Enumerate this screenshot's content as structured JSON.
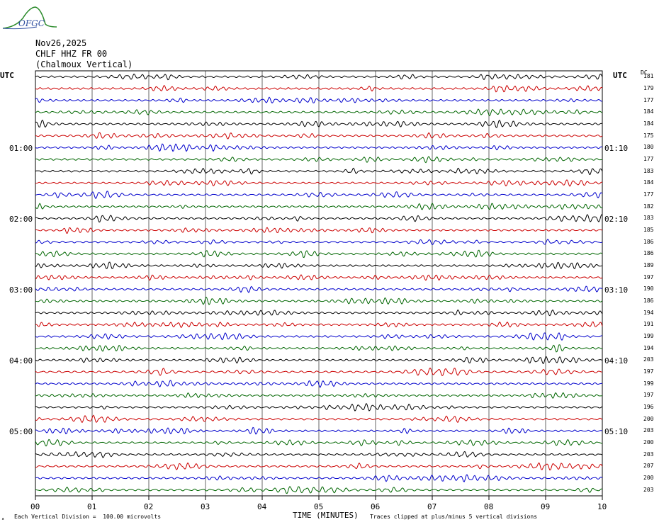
{
  "logo_text": "OFGC",
  "header": {
    "date": "Nov26,2025",
    "station": "CHLF HHZ FR 00",
    "name": "(Chalmoux Vertical)"
  },
  "utc_left": "UTC",
  "utc_right": "UTC",
  "dc_label": "DC",
  "left_times": [
    "01:00",
    "02:00",
    "03:00",
    "04:00",
    "05:00"
  ],
  "right_times": [
    "01:10",
    "02:10",
    "03:10",
    "04:10",
    "05:10"
  ],
  "dc_values": [
    "181",
    "179",
    "177",
    "184",
    "184",
    "175",
    "180",
    "177",
    "183",
    "184",
    "177",
    "182",
    "183",
    "185",
    "186",
    "186",
    "189",
    "197",
    "190",
    "186",
    "194",
    "191",
    "199",
    "194",
    "203",
    "197",
    "199",
    "197",
    "196",
    "200",
    "203",
    "200",
    "203",
    "207",
    "200",
    "203"
  ],
  "x_ticks": [
    "00",
    "01",
    "02",
    "03",
    "04",
    "05",
    "06",
    "07",
    "08",
    "09",
    "10"
  ],
  "x_title": "TIME (MINUTES)",
  "footer_left": "Each Vertical Division =  100.00 microvolts",
  "footer_right": "Traces clipped at plus/minus 5 vertical divisions",
  "trace_colors": [
    "#000000",
    "#cc0000",
    "#0000cc",
    "#006600"
  ]
}
